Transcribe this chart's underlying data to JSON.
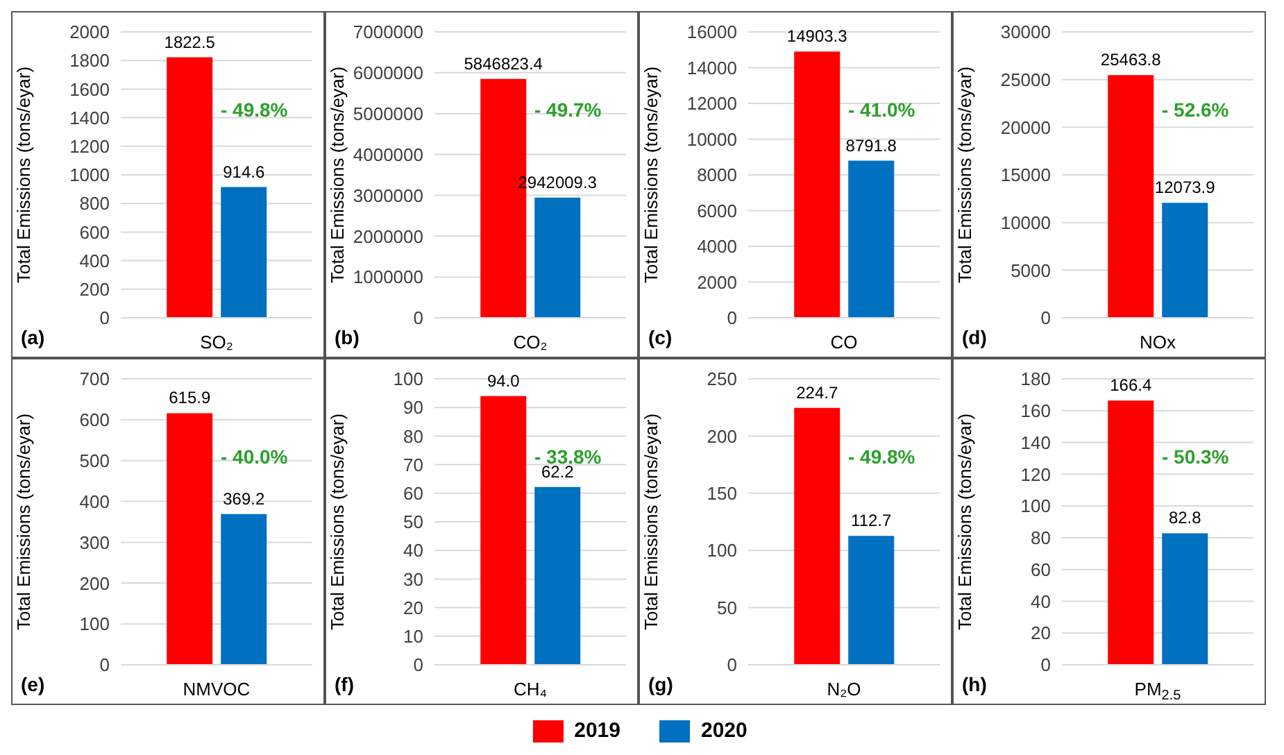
{
  "chart_data": [
    {
      "type": "bar",
      "ylabel": "Total Emissions (tons/eyar)",
      "categories": [
        "SO₂"
      ],
      "series": [
        {
          "name": "2019",
          "color": "#ff0000",
          "values": [
            1822.5
          ]
        },
        {
          "name": "2020",
          "color": "#0070c0",
          "values": [
            914.6
          ]
        }
      ],
      "ylim": [
        0,
        2000
      ],
      "yticks": [
        0,
        200,
        400,
        600,
        800,
        1000,
        1200,
        1400,
        1600,
        1800,
        2000
      ],
      "grid": "y",
      "data_labels": true,
      "legend": "bottom",
      "annotations": [
        "- 49.8%",
        "(a)"
      ]
    },
    {
      "type": "bar",
      "ylabel": "Total Emissions (tons/eyar)",
      "categories": [
        "CO₂"
      ],
      "series": [
        {
          "name": "2019",
          "color": "#ff0000",
          "values": [
            5846823.4
          ]
        },
        {
          "name": "2020",
          "color": "#0070c0",
          "values": [
            2942009.3
          ]
        }
      ],
      "ylim": [
        0,
        7000000
      ],
      "yticks": [
        0,
        1000000,
        2000000,
        3000000,
        4000000,
        5000000,
        6000000,
        7000000
      ],
      "grid": "y",
      "data_labels": true,
      "annotations": [
        "- 49.7%",
        "(b)"
      ]
    },
    {
      "type": "bar",
      "ylabel": "Total Emissions (tons/eyar)",
      "categories": [
        "CO"
      ],
      "series": [
        {
          "name": "2019",
          "color": "#ff0000",
          "values": [
            14903.3
          ]
        },
        {
          "name": "2020",
          "color": "#0070c0",
          "values": [
            8791.8
          ]
        }
      ],
      "ylim": [
        0,
        16000
      ],
      "yticks": [
        0,
        2000,
        4000,
        6000,
        8000,
        10000,
        12000,
        14000,
        16000
      ],
      "grid": "y",
      "data_labels": true,
      "annotations": [
        "- 41.0%",
        "(c)"
      ]
    },
    {
      "type": "bar",
      "ylabel": "Total Emissions (tons/eyar)",
      "categories": [
        "NOx"
      ],
      "series": [
        {
          "name": "2019",
          "color": "#ff0000",
          "values": [
            25463.8
          ]
        },
        {
          "name": "2020",
          "color": "#0070c0",
          "values": [
            12073.9
          ]
        }
      ],
      "ylim": [
        0,
        30000
      ],
      "yticks": [
        0,
        5000,
        10000,
        15000,
        20000,
        25000,
        30000
      ],
      "grid": "y",
      "data_labels": true,
      "annotations": [
        "- 52.6%",
        "(d)"
      ]
    },
    {
      "type": "bar",
      "ylabel": "Total Emissions (tons/eyar)",
      "categories": [
        "NMVOC"
      ],
      "series": [
        {
          "name": "2019",
          "color": "#ff0000",
          "values": [
            615.9
          ]
        },
        {
          "name": "2020",
          "color": "#0070c0",
          "values": [
            369.2
          ]
        }
      ],
      "ylim": [
        0,
        700
      ],
      "yticks": [
        0,
        100,
        200,
        300,
        400,
        500,
        600,
        700
      ],
      "grid": "y",
      "data_labels": true,
      "annotations": [
        "- 40.0%",
        "(e)"
      ]
    },
    {
      "type": "bar",
      "ylabel": "Total Emissions (tons/eyar)",
      "categories": [
        "CH₄"
      ],
      "series": [
        {
          "name": "2019",
          "color": "#ff0000",
          "values": [
            94.0
          ],
          "value_labels": [
            "94.0"
          ]
        },
        {
          "name": "2020",
          "color": "#0070c0",
          "values": [
            62.2
          ],
          "value_labels": [
            "62.2"
          ]
        }
      ],
      "ylim": [
        0,
        100
      ],
      "yticks": [
        0,
        10,
        20,
        30,
        40,
        50,
        60,
        70,
        80,
        90,
        100
      ],
      "grid": "y",
      "annotations": [
        "- 33.8%",
        "(f)"
      ]
    },
    {
      "type": "bar",
      "ylabel": "Total Emissions (tons/eyar)",
      "categories": [
        "N₂O"
      ],
      "series": [
        {
          "name": "2019",
          "color": "#ff0000",
          "values": [
            224.7
          ]
        },
        {
          "name": "2020",
          "color": "#0070c0",
          "values": [
            112.7
          ]
        }
      ],
      "ylim": [
        0,
        250
      ],
      "yticks": [
        0,
        50,
        100,
        150,
        200,
        250
      ],
      "grid": "y",
      "data_labels": true,
      "annotations": [
        "- 49.8%",
        "(g)"
      ]
    },
    {
      "type": "bar",
      "ylabel": "Total Emissions (tons/eyar)",
      "categories": [
        "PM$_{2.5}$"
      ],
      "series": [
        {
          "name": "2019",
          "color": "#ff0000",
          "values": [
            166.4
          ]
        },
        {
          "name": "2020",
          "color": "#0070c0",
          "values": [
            82.8
          ]
        }
      ],
      "ylim": [
        0,
        180
      ],
      "yticks": [
        0,
        20,
        40,
        60,
        80,
        100,
        120,
        140,
        160,
        180
      ],
      "grid": "y",
      "data_labels": true,
      "annotations": [
        "- 50.3%",
        "(h)"
      ]
    }
  ]
}
